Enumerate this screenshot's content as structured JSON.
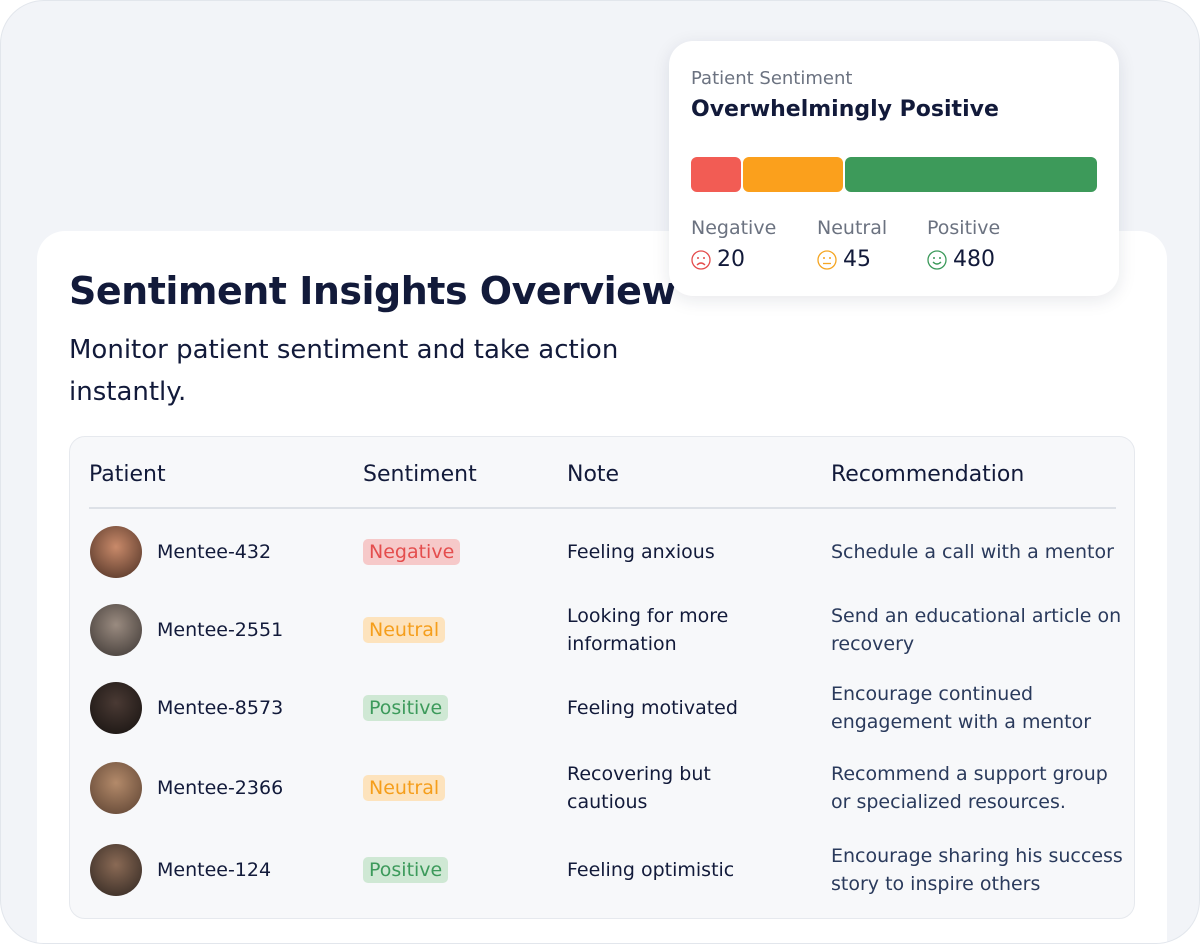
{
  "card": {
    "label": "Patient Sentiment",
    "headline": "Overwhelmingly Positive",
    "stats": [
      {
        "label": "Negative",
        "count": 20
      },
      {
        "label": "Neutral",
        "count": 45
      },
      {
        "label": "Positive",
        "count": 480
      }
    ]
  },
  "header": {
    "title": "Sentiment Insights Overview",
    "subtitle": "Monitor patient sentiment and take action instantly."
  },
  "table": {
    "columns": [
      "Patient",
      "Sentiment",
      "Note",
      "Recommendation"
    ],
    "rows": [
      {
        "patient": "Mentee-432",
        "sentiment": "Negative",
        "note": "Feeling anxious",
        "recommendation": "Schedule a call with a mentor"
      },
      {
        "patient": "Mentee-2551",
        "sentiment": "Neutral",
        "note": "Looking for more information",
        "recommendation": "Send an educational article on recovery"
      },
      {
        "patient": "Mentee-8573",
        "sentiment": "Positive",
        "note": "Feeling motivated",
        "recommendation": "Encourage continued engagement with a mentor"
      },
      {
        "patient": "Mentee-2366",
        "sentiment": "Neutral",
        "note": "Recovering but cautious",
        "recommendation": "Recommend a support group or specialized resources."
      },
      {
        "patient": "Mentee-124",
        "sentiment": "Positive",
        "note": "Feeling optimistic",
        "recommendation": "Encourage sharing his success story to inspire others"
      }
    ]
  }
}
